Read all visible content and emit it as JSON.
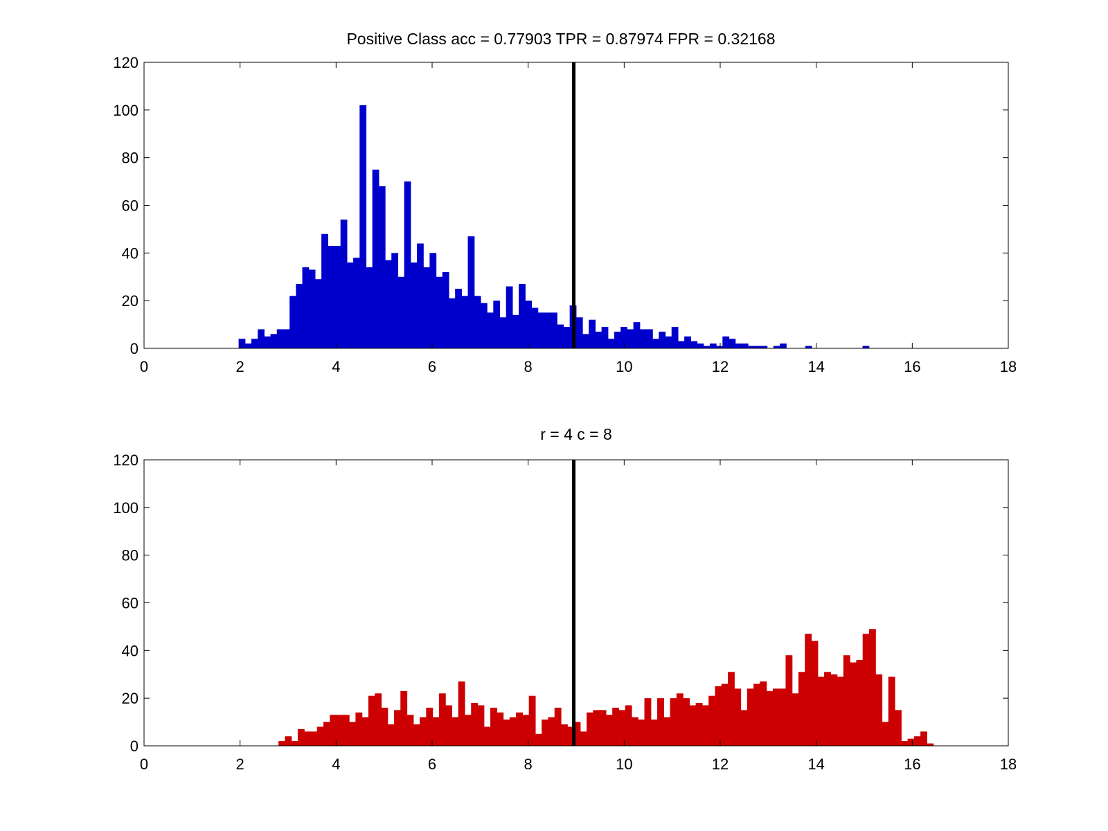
{
  "chart_data": [
    {
      "type": "bar",
      "title": "Positive Class  acc = 0.77903 TPR = 0.87974 FPR = 0.32168",
      "xlim": [
        0,
        18
      ],
      "ylim": [
        0,
        120
      ],
      "xticks": [
        0,
        2,
        4,
        6,
        8,
        10,
        12,
        14,
        16,
        18
      ],
      "yticks": [
        0,
        20,
        40,
        60,
        80,
        100,
        120
      ],
      "bin_start": 1.97,
      "bin_width": 0.1326,
      "values": [
        4,
        2,
        4,
        8,
        5,
        6,
        8,
        8,
        22,
        27,
        34,
        33,
        29,
        48,
        43,
        43,
        54,
        36,
        38,
        102,
        34,
        75,
        68,
        37,
        40,
        30,
        70,
        36,
        44,
        34,
        40,
        30,
        32,
        21,
        25,
        22,
        47,
        22,
        19,
        15,
        20,
        13,
        26,
        14,
        27,
        20,
        17,
        15,
        15,
        15,
        10,
        9,
        18,
        13,
        6,
        12,
        7,
        9,
        4,
        7,
        9,
        8,
        11,
        8,
        8,
        4,
        7,
        5,
        9,
        3,
        5,
        3,
        2,
        1,
        2,
        1,
        5,
        4,
        2,
        2,
        1,
        1,
        1,
        0,
        1,
        2,
        0,
        0,
        0,
        1,
        0,
        0,
        0,
        0,
        0,
        0,
        0,
        0,
        1
      ],
      "color": "#0000cc",
      "threshold": 8.95
    },
    {
      "type": "bar",
      "title": "r = 4 c = 8",
      "xlim": [
        0,
        18
      ],
      "ylim": [
        0,
        120
      ],
      "xticks": [
        0,
        2,
        4,
        6,
        8,
        10,
        12,
        14,
        16,
        18
      ],
      "yticks": [
        0,
        20,
        40,
        60,
        80,
        100,
        120
      ],
      "bin_start": 2.8,
      "bin_width": 0.1337,
      "values": [
        2,
        4,
        2,
        7,
        6,
        6,
        8,
        10,
        13,
        13,
        13,
        10,
        14,
        12,
        21,
        22,
        16,
        9,
        15,
        23,
        13,
        9,
        12,
        16,
        12,
        22,
        17,
        12,
        27,
        13,
        18,
        17,
        8,
        16,
        14,
        11,
        12,
        14,
        13,
        21,
        5,
        11,
        12,
        16,
        9,
        8,
        10,
        6,
        14,
        15,
        15,
        13,
        16,
        15,
        17,
        12,
        11,
        20,
        11,
        20,
        12,
        20,
        22,
        20,
        17,
        18,
        17,
        21,
        25,
        26,
        31,
        24,
        15,
        24,
        26,
        27,
        23,
        24,
        24,
        38,
        22,
        31,
        47,
        44,
        29,
        31,
        30,
        29,
        38,
        35,
        36,
        47,
        49,
        30,
        10,
        29,
        15,
        2,
        3,
        4,
        6,
        1
      ],
      "color": "#cc0000",
      "threshold": 8.95
    }
  ]
}
